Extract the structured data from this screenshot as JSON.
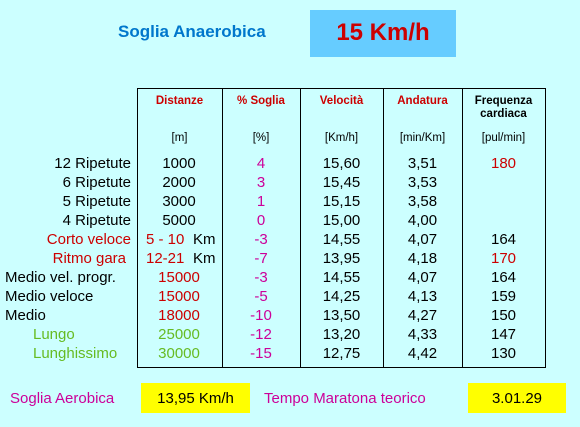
{
  "header": {
    "title": "Soglia Anaerobica",
    "threshold": "15 Km/h"
  },
  "table": {
    "columns": [
      "Distanze",
      "% Soglia",
      "Velocità",
      "Andatura",
      "Frequenza cardiaca"
    ],
    "units": [
      "[m]",
      "[%]",
      "[Km/h]",
      "[min/Km]",
      "[pul/min]"
    ],
    "rows": [
      {
        "label": "12 Ripetute",
        "distance": "1000",
        "percent": "4",
        "speed": "15,60",
        "pace": "3,51",
        "hr": "180"
      },
      {
        "label": "6 Ripetute",
        "distance": "2000",
        "percent": "3",
        "speed": "15,45",
        "pace": "3,53",
        "hr": null
      },
      {
        "label": "5 Ripetute",
        "distance": "3000",
        "percent": "1",
        "speed": "15,15",
        "pace": "3,58",
        "hr": null
      },
      {
        "label": "4 Ripetute",
        "distance": "5000",
        "percent": "0",
        "speed": "15,00",
        "pace": "4,00",
        "hr": null
      },
      {
        "label": "Corto veloce",
        "distance": "5 - 10",
        "distance_unit": "Km",
        "percent": "-3",
        "speed": "14,55",
        "pace": "4,07",
        "hr": "164"
      },
      {
        "label": "Ritmo gara",
        "distance": "12-21",
        "distance_unit": "Km",
        "percent": "-7",
        "speed": "13,95",
        "pace": "4,18",
        "hr": "170"
      },
      {
        "label": "Medio vel. progr.",
        "distance": "15000",
        "percent": "-3",
        "speed": "14,55",
        "pace": "4,07",
        "hr": "164"
      },
      {
        "label": "Medio veloce",
        "distance": "15000",
        "percent": "-5",
        "speed": "14,25",
        "pace": "4,13",
        "hr": "159"
      },
      {
        "label": "Medio",
        "distance": "18000",
        "percent": "-10",
        "speed": "13,50",
        "pace": "4,27",
        "hr": "150"
      },
      {
        "label": "Lungo",
        "distance": "25000",
        "percent": "-12",
        "speed": "13,20",
        "pace": "4,33",
        "hr": "147"
      },
      {
        "label": "Lunghissimo",
        "distance": "30000",
        "percent": "-15",
        "speed": "12,75",
        "pace": "4,42",
        "hr": "130"
      }
    ]
  },
  "footer": {
    "aerobic_label": "Soglia Aerobica",
    "aerobic_value": "13,95 Km/h",
    "marathon_label": "Tempo Maratona teorico",
    "marathon_value": "3.01.29"
  }
}
